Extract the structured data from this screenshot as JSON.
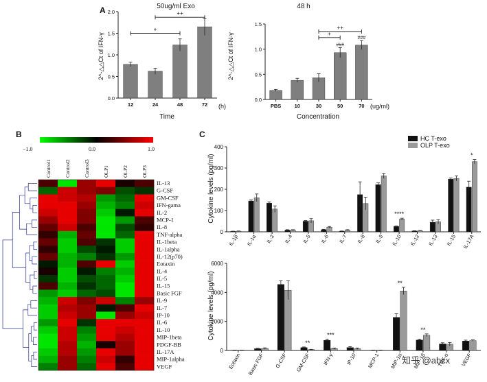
{
  "colors": {
    "bar_gray": "#7f7f7f",
    "bar_black": "#111111",
    "bar_lightgray": "#9a9a9a",
    "dendro": "#3f4a9a",
    "heat_low": "#00ff00",
    "heat_mid": "#000000",
    "heat_high": "#ff0000"
  },
  "panel_labels": {
    "a": "A",
    "b": "B",
    "c": "C"
  },
  "watermark": "知乎 @abcx",
  "chart_data": [
    {
      "id": "A1",
      "type": "bar",
      "title": "50ug/ml Exo",
      "categories": [
        "12",
        "24",
        "48",
        "72"
      ],
      "values": [
        0.78,
        0.62,
        1.23,
        1.65
      ],
      "errors": [
        0.05,
        0.07,
        0.14,
        0.2
      ],
      "xlabel": "Time",
      "xunit": "(h)",
      "ylabel": "2^-△△Ct of IFN-γ",
      "ylim": [
        0,
        2.0
      ],
      "yticks": [
        "0.0",
        "0.5",
        "1.0",
        "1.5",
        "2.0"
      ],
      "sig": [
        {
          "from": 0,
          "to": 2,
          "label": "+",
          "level": 1.5
        },
        {
          "from": 1,
          "to": 3,
          "label": "++",
          "level": 1.87
        }
      ]
    },
    {
      "id": "A2",
      "type": "bar",
      "title": "48 h",
      "categories": [
        "PBS",
        "10",
        "30",
        "50",
        "70"
      ],
      "values": [
        0.18,
        0.38,
        0.43,
        0.93,
        1.08
      ],
      "errors": [
        0.02,
        0.04,
        0.08,
        0.1,
        0.09
      ],
      "value_labels": [
        "",
        "",
        "",
        "###",
        "###"
      ],
      "xlabel": "Concentration",
      "xunit": "(ug/ml)",
      "ylabel": "2^-△△Ct of IFN-γ",
      "ylim": [
        0,
        1.5
      ],
      "yticks": [
        "0.0",
        "0.5",
        "1.0",
        "1.5"
      ],
      "sig": [
        {
          "from": 2,
          "to": 3,
          "label": "+",
          "level": 1.23
        },
        {
          "from": 2,
          "to": 4,
          "label": "++",
          "level": 1.35
        }
      ]
    },
    {
      "id": "B",
      "type": "heatmap",
      "colorbar": {
        "min": -1.0,
        "max": 1.0,
        "ticks": [
          "−1.0",
          "0.0",
          "1.0"
        ]
      },
      "columns": [
        "Control1",
        "Control2",
        "Control3",
        "OLP1",
        "OLP2",
        "OLP3"
      ],
      "rows": [
        "IL-13",
        "G-CSF",
        "GM-CSF",
        "IFN-gama",
        "IL-2",
        "MCP-1",
        "IL-8",
        "TNF-alpha",
        "IL-1beta",
        "IL-1alpha",
        "IL-12(p70)",
        "Eotaxin",
        "IL-4",
        "IL-5",
        "IL-15",
        "Basic FGF",
        "IL-9",
        "IL-7",
        "IP-10",
        "IL-6",
        "IL-10",
        "MIP-1beta",
        "PDGF-BB",
        "IL-17A",
        "MIP-1alpha",
        "VEGF"
      ],
      "values": [
        [
          0.3,
          -0.9,
          0.6,
          0.9,
          0.1,
          0.3
        ],
        [
          -0.4,
          0.8,
          0.6,
          0.5,
          -0.3,
          -0.2
        ],
        [
          0.9,
          0.8,
          0.7,
          -0.6,
          -0.4,
          0.9
        ],
        [
          0.9,
          0.9,
          0.6,
          -0.7,
          -0.5,
          0.8
        ],
        [
          0.8,
          0.9,
          0.5,
          -0.8,
          -0.1,
          0.9
        ],
        [
          0.6,
          0.9,
          0.5,
          -0.9,
          -0.6,
          0.3
        ],
        [
          0.4,
          0.8,
          0.3,
          -0.9,
          -0.3,
          0.2
        ],
        [
          0.2,
          -0.7,
          0.4,
          -0.9,
          -0.4,
          0.9
        ],
        [
          0.4,
          -0.8,
          0.3,
          -0.2,
          -0.8,
          0.9
        ],
        [
          0.2,
          -0.8,
          -0.3,
          -0.1,
          -0.8,
          0.9
        ],
        [
          0.4,
          -0.7,
          -0.5,
          -0.2,
          -0.6,
          0.9
        ],
        [
          -0.1,
          -0.7,
          0.3,
          0.9,
          -0.8,
          0.9
        ],
        [
          0.1,
          -0.8,
          -0.1,
          -0.5,
          -0.7,
          0.9
        ],
        [
          -0.2,
          -0.8,
          -0.3,
          -0.4,
          -0.8,
          0.9
        ],
        [
          0.3,
          -0.7,
          -0.2,
          -0.4,
          -0.9,
          0.9
        ],
        [
          -0.6,
          -0.8,
          -0.4,
          -0.3,
          -0.9,
          0.9
        ],
        [
          -0.7,
          0.8,
          0.5,
          0.8,
          -0.5,
          0.6
        ],
        [
          -0.8,
          0.7,
          0.6,
          -0.1,
          0.3,
          0.9
        ],
        [
          -0.8,
          0.8,
          0.6,
          -0.9,
          0.6,
          0.8
        ],
        [
          -0.6,
          0.9,
          -0.2,
          0.9,
          0.9,
          0.9
        ],
        [
          -0.8,
          0.8,
          -0.5,
          0.9,
          0.8,
          0.9
        ],
        [
          -0.9,
          0.8,
          -0.6,
          0.9,
          0.7,
          0.9
        ],
        [
          -0.9,
          0.7,
          -0.7,
          0.1,
          0.6,
          0.9
        ],
        [
          -0.8,
          0.7,
          -0.6,
          0.9,
          0.6,
          0.9
        ],
        [
          -0.7,
          0.6,
          -0.5,
          0.8,
          0.2,
          0.9
        ],
        [
          -0.5,
          0.6,
          -0.4,
          0.9,
          0.3,
          0.9
        ]
      ]
    },
    {
      "id": "C1",
      "type": "bar",
      "ylabel": "Cytokine levels (pg/ml)",
      "ylim": [
        0,
        400
      ],
      "yticks": [
        "0",
        "100",
        "200",
        "300",
        "400"
      ],
      "legend": [
        "HC T-exo",
        "OLP T-exo"
      ],
      "categories": [
        "IL-1β",
        "IL-1α",
        "IL-2",
        "IL-4",
        "IL-5",
        "IL-6",
        "IL-7",
        "IL-8",
        "IL-9",
        "IL-10",
        "IL-12",
        "IL-13",
        "IL-15",
        "IL-17A"
      ],
      "series": [
        {
          "name": "HC T-exo",
          "values": [
            2,
            145,
            135,
            8,
            50,
            10,
            3,
            175,
            222,
            25,
            4,
            45,
            248,
            210
          ],
          "errors": [
            1,
            5,
            6,
            2,
            3,
            2,
            1,
            60,
            8,
            3,
            1,
            10,
            5,
            28
          ]
        },
        {
          "name": "OLP T-exo",
          "values": [
            3,
            160,
            107,
            8,
            52,
            22,
            8,
            133,
            263,
            60,
            5,
            47,
            251,
            330
          ],
          "errors": [
            1,
            18,
            15,
            2,
            10,
            3,
            2,
            30,
            12,
            4,
            1,
            10,
            12,
            10
          ]
        }
      ],
      "annotations": [
        {
          "index": 9,
          "text": "****"
        },
        {
          "index": 13,
          "text": "*"
        }
      ]
    },
    {
      "id": "C2",
      "type": "bar",
      "ylabel": "Cytokine levels (pg/ml)",
      "ylim": [
        0,
        6000
      ],
      "yticks": [
        "0",
        "2000",
        "4000",
        "6000"
      ],
      "categories": [
        "Eotaxin",
        "Basic FGF",
        "G-CSF",
        "GM-CSF",
        "IFN-γ",
        "IP-10",
        "MCP-1",
        "MIP-1α",
        "MIP-1β",
        "TNF-α",
        "VEGF"
      ],
      "series": [
        {
          "name": "HC T-exo",
          "values": [
            20,
            120,
            4550,
            200,
            700,
            200,
            20,
            2280,
            720,
            450,
            650
          ],
          "errors": [
            5,
            30,
            250,
            40,
            80,
            60,
            5,
            250,
            60,
            80,
            60
          ]
        },
        {
          "name": "OLP T-exo",
          "values": [
            20,
            140,
            4150,
            60,
            130,
            120,
            20,
            4100,
            1050,
            430,
            680
          ],
          "errors": [
            5,
            40,
            650,
            20,
            40,
            50,
            5,
            250,
            90,
            120,
            50
          ]
        }
      ],
      "annotations": [
        {
          "index": 3,
          "text": "**"
        },
        {
          "index": 4,
          "text": "***"
        },
        {
          "index": 7,
          "text": "**"
        },
        {
          "index": 8,
          "text": "**"
        }
      ]
    }
  ]
}
